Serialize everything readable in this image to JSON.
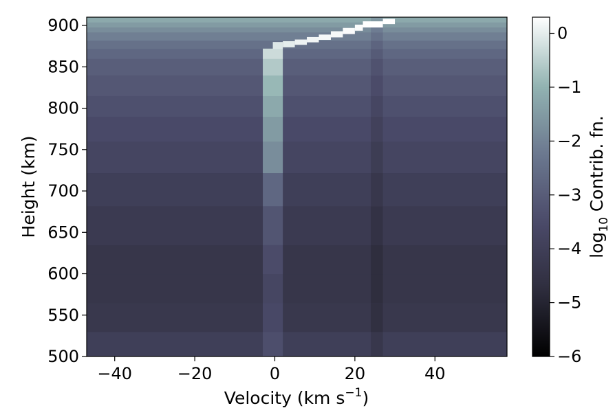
{
  "chart_data": {
    "type": "heatmap",
    "title": "",
    "xlabel": "Velocity (km s",
    "xlabel_sup": "−1",
    "xlabel_tail": ")",
    "ylabel": "Height (km)",
    "xlim": [
      -47,
      58
    ],
    "ylim": [
      500,
      910
    ],
    "x_ticks": [
      -40,
      -20,
      0,
      20,
      40
    ],
    "x_tick_labels": [
      "−40",
      "−20",
      "0",
      "20",
      "40"
    ],
    "y_ticks": [
      500,
      550,
      600,
      650,
      700,
      750,
      800,
      850,
      900
    ],
    "y_tick_labels": [
      "500",
      "550",
      "600",
      "650",
      "700",
      "750",
      "800",
      "850",
      "900"
    ],
    "colorbar": {
      "label_prefix": "log",
      "label_sub": "10",
      "label_suffix": " Contrib. fn.",
      "vmin": -6,
      "vmax": 0.3,
      "ticks": [
        0,
        -1,
        -2,
        -3,
        -4,
        -5,
        -6
      ],
      "tick_labels": [
        "0",
        "−1",
        "−2",
        "−3",
        "−4",
        "−5",
        "−6"
      ],
      "colors": [
        "#000000",
        "#2f2e3e",
        "#4b4b6a",
        "#6c7990",
        "#93b4b2",
        "#ffffff"
      ]
    },
    "grid": false,
    "rows": [
      {
        "y0": 500,
        "y1": 530,
        "bg": -4.0
      },
      {
        "y0": 530,
        "y1": 565,
        "bg": -4.3
      },
      {
        "y0": 565,
        "y1": 600,
        "bg": -4.4
      },
      {
        "y0": 600,
        "y1": 635,
        "bg": -4.4
      },
      {
        "y0": 635,
        "y1": 682,
        "bg": -4.2
      },
      {
        "y0": 682,
        "y1": 722,
        "bg": -4.0
      },
      {
        "y0": 722,
        "y1": 760,
        "bg": -3.75
      },
      {
        "y0": 760,
        "y1": 790,
        "bg": -3.55
      },
      {
        "y0": 790,
        "y1": 815,
        "bg": -3.35
      },
      {
        "y0": 815,
        "y1": 840,
        "bg": -3.15
      },
      {
        "y0": 840,
        "y1": 860,
        "bg": -2.95
      },
      {
        "y0": 860,
        "y1": 872,
        "bg": -2.7
      },
      {
        "y0": 872,
        "y1": 882,
        "bg": -2.45
      },
      {
        "y0": 882,
        "y1": 892,
        "bg": -2.1
      },
      {
        "y0": 892,
        "y1": 898,
        "bg": -1.8
      },
      {
        "y0": 898,
        "y1": 904,
        "bg": -1.5
      },
      {
        "y0": 904,
        "y1": 910,
        "bg": -1.2
      }
    ],
    "dark_stripe": {
      "x0": 24,
      "x1": 27,
      "delta": -0.35
    },
    "ridge": [
      {
        "y0": 500,
        "y1": 530,
        "x0": -3,
        "x1": 2,
        "v": -3.4
      },
      {
        "y0": 530,
        "y1": 565,
        "x0": -3,
        "x1": 2,
        "v": -3.6
      },
      {
        "y0": 565,
        "y1": 600,
        "x0": -3,
        "x1": 2,
        "v": -3.7
      },
      {
        "y0": 600,
        "y1": 635,
        "x0": -3,
        "x1": 2,
        "v": -3.5
      },
      {
        "y0": 635,
        "y1": 682,
        "x0": -3,
        "x1": 2,
        "v": -3.2
      },
      {
        "y0": 682,
        "y1": 722,
        "x0": -3,
        "x1": 2,
        "v": -2.7
      },
      {
        "y0": 722,
        "y1": 760,
        "x0": -3,
        "x1": 2,
        "v": -1.8
      },
      {
        "y0": 760,
        "y1": 790,
        "x0": -3,
        "x1": 2,
        "v": -1.5
      },
      {
        "y0": 790,
        "y1": 815,
        "x0": -3,
        "x1": 2,
        "v": -1.2
      },
      {
        "y0": 815,
        "y1": 840,
        "x0": -3,
        "x1": 2,
        "v": -0.9
      },
      {
        "y0": 840,
        "y1": 860,
        "x0": -3,
        "x1": 2,
        "v": -0.6
      },
      {
        "y0": 860,
        "y1": 872,
        "x0": -3,
        "x1": 2,
        "v": -0.3
      },
      {
        "y0": 872,
        "y1": 880,
        "x0": -0.5,
        "x1": 2,
        "v": -0.1
      },
      {
        "y0": 874,
        "y1": 881,
        "x0": 2,
        "x1": 5,
        "v": 0.0
      },
      {
        "y0": 877,
        "y1": 883,
        "x0": 5,
        "x1": 8,
        "v": 0.1
      },
      {
        "y0": 880,
        "y1": 886,
        "x0": 8,
        "x1": 11,
        "v": 0.15
      },
      {
        "y0": 883,
        "y1": 889,
        "x0": 11,
        "x1": 14,
        "v": 0.2
      },
      {
        "y0": 886,
        "y1": 893,
        "x0": 14,
        "x1": 17,
        "v": 0.2
      },
      {
        "y0": 890,
        "y1": 897,
        "x0": 17,
        "x1": 20,
        "v": 0.25
      },
      {
        "y0": 894,
        "y1": 901,
        "x0": 20,
        "x1": 22,
        "v": 0.25
      },
      {
        "y0": 898,
        "y1": 905,
        "x0": 22,
        "x1": 27,
        "v": 0.3
      },
      {
        "y0": 902,
        "y1": 908,
        "x0": 27,
        "x1": 30,
        "v": 0.3
      }
    ]
  }
}
